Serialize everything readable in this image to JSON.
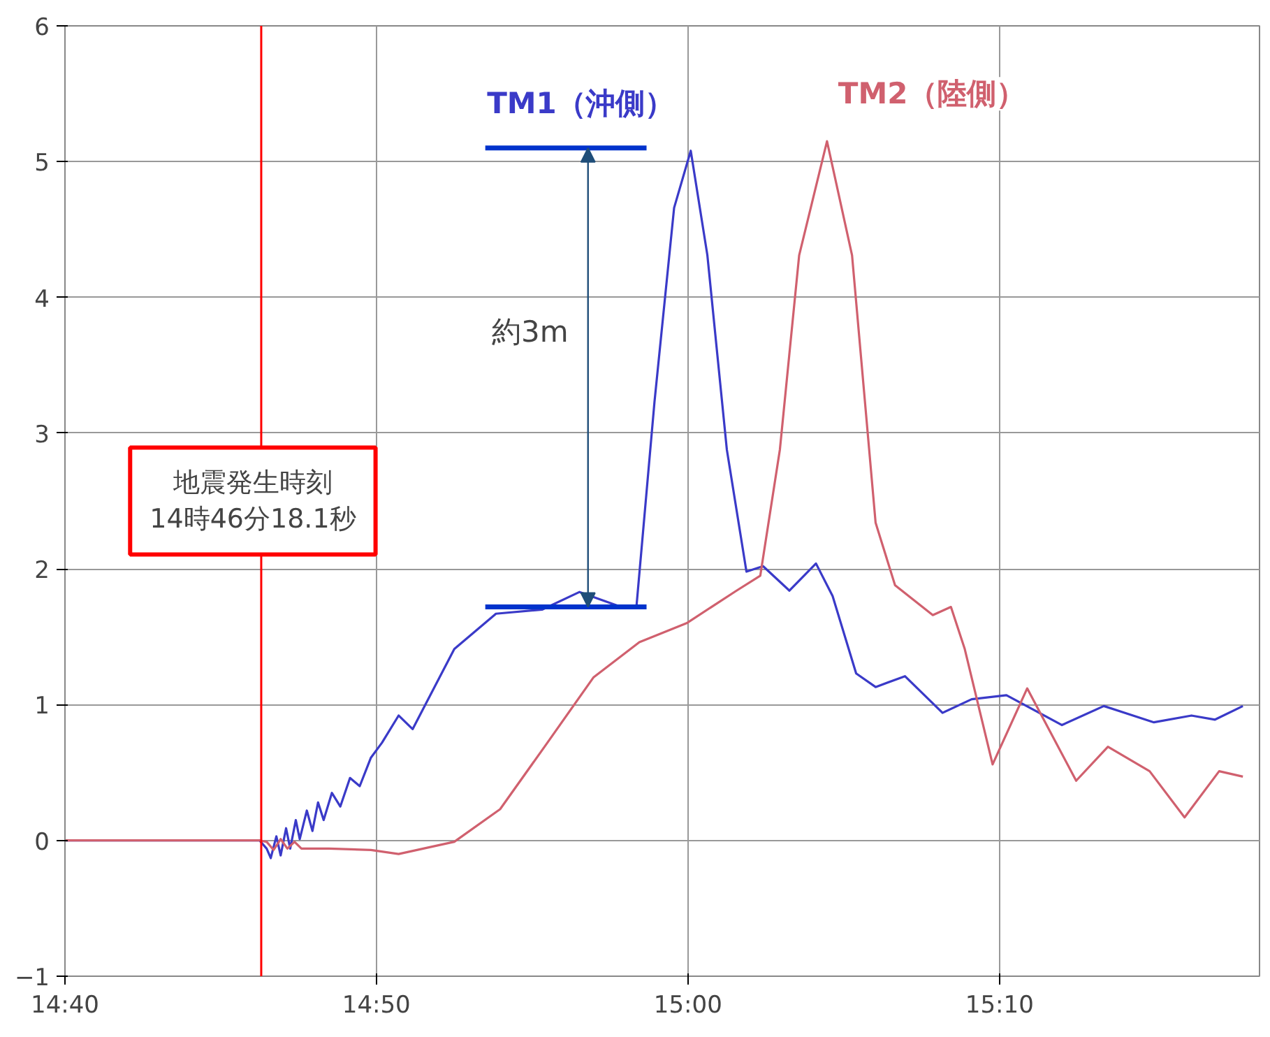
{
  "chart_data": {
    "type": "line",
    "xlim": [
      14.6667,
      15.3058
    ],
    "xticks": [
      {
        "value": 14.6667,
        "label": "14:40"
      },
      {
        "value": 14.8333,
        "label": "14:50"
      },
      {
        "value": 15.0,
        "label": "15:00"
      },
      {
        "value": 15.1667,
        "label": "15:10"
      }
    ],
    "ylim": [
      -1,
      6
    ],
    "yticks": [
      -1,
      0,
      1,
      2,
      3,
      4,
      5,
      6
    ],
    "grid": true,
    "marker": "none",
    "line_style": "solid",
    "series": [
      {
        "name": "TM1（沖側）",
        "color": "#3a3ac8",
        "x": [
          14.6667,
          14.7708,
          14.7746,
          14.7768,
          14.7798,
          14.7821,
          14.785,
          14.7872,
          14.7902,
          14.7923,
          14.7961,
          14.7991,
          14.8021,
          14.8051,
          14.8095,
          14.814,
          14.8192,
          14.8244,
          14.8304,
          14.8363,
          14.8452,
          14.8527,
          14.875,
          14.8973,
          14.9219,
          14.942,
          14.9621,
          14.9725,
          14.9821,
          14.9926,
          15.0015,
          15.0104,
          15.0208,
          15.0313,
          15.0402,
          15.0543,
          15.0685,
          15.0774,
          15.09,
          15.1004,
          15.1161,
          15.1362,
          15.1518,
          15.1704,
          15.2001,
          15.2225,
          15.2493,
          15.2694,
          15.282,
          15.2969
        ],
        "values": [
          0,
          0,
          -0.06,
          -0.13,
          0.03,
          -0.11,
          0.09,
          -0.06,
          0.15,
          0.01,
          0.22,
          0.07,
          0.28,
          0.15,
          0.35,
          0.25,
          0.46,
          0.4,
          0.61,
          0.72,
          0.92,
          0.82,
          1.41,
          1.67,
          1.7,
          1.83,
          1.73,
          1.73,
          3.23,
          4.66,
          5.08,
          4.31,
          2.88,
          1.98,
          2.02,
          1.84,
          2.04,
          1.8,
          1.23,
          1.13,
          1.21,
          0.94,
          1.04,
          1.07,
          0.85,
          0.99,
          0.87,
          0.92,
          0.89,
          0.99
        ]
      },
      {
        "name": "TM2（陸側）",
        "color": "#d0606e",
        "x": [
          14.6667,
          14.7708,
          14.7746,
          14.7783,
          14.7821,
          14.7857,
          14.7895,
          14.7932,
          14.808,
          14.8304,
          14.8452,
          14.875,
          14.8995,
          14.9248,
          14.9494,
          14.974,
          14.9993,
          15.026,
          15.0387,
          15.0492,
          15.0595,
          15.0744,
          15.0878,
          15.1004,
          15.1108,
          15.131,
          15.1407,
          15.1481,
          15.163,
          15.1815,
          15.2077,
          15.2247,
          15.247,
          15.2657,
          15.2842,
          15.2969
        ],
        "values": [
          0,
          0,
          -0.01,
          -0.07,
          0.01,
          -0.06,
          -0.01,
          -0.06,
          -0.06,
          -0.07,
          -0.1,
          -0.01,
          0.23,
          0.72,
          1.2,
          1.46,
          1.6,
          1.84,
          1.95,
          2.88,
          4.31,
          5.15,
          4.31,
          2.34,
          1.88,
          1.66,
          1.72,
          1.41,
          0.56,
          1.12,
          0.44,
          0.69,
          0.51,
          0.17,
          0.51,
          0.47
        ]
      }
    ],
    "ref_lines": [
      {
        "axis": "x",
        "value": 14.7717,
        "color": "#ff0000"
      },
      {
        "axis": "y",
        "value": 1.72,
        "color": "#0033cc"
      },
      {
        "axis": "y",
        "value": 5.1,
        "color": "#0033cc"
      }
    ],
    "annotations": [
      "地震発生時刻\n14時46分18.1秒",
      "約3m"
    ]
  }
}
